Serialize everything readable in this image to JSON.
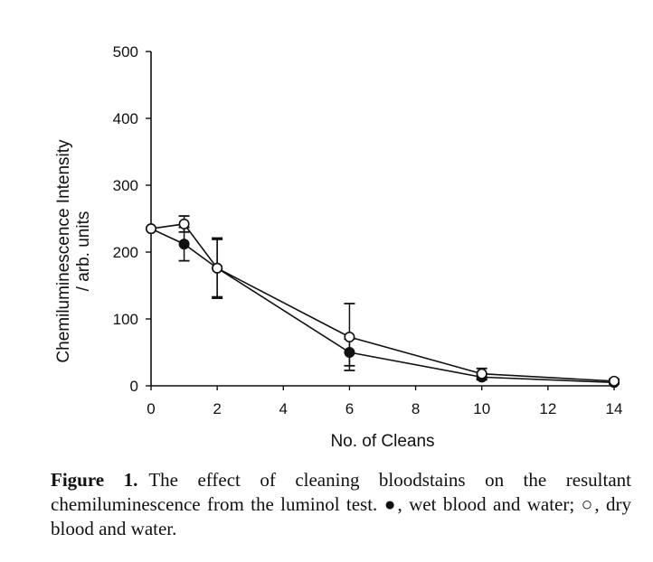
{
  "chart_data": {
    "type": "line",
    "xlabel": "No. of Cleans",
    "ylabel_line1": "Chemiluminescence Intensity",
    "ylabel_line2": "/ arb. units",
    "xlim": [
      0,
      14
    ],
    "ylim": [
      0,
      500
    ],
    "xticks": [
      0,
      2,
      4,
      6,
      8,
      10,
      12,
      14
    ],
    "yticks": [
      0,
      100,
      200,
      300,
      400,
      500
    ],
    "grid": false,
    "series": [
      {
        "name": "wet blood and water",
        "marker": "filled-circle",
        "x": [
          0,
          1,
          2,
          6,
          10,
          14
        ],
        "y": [
          235,
          212,
          176,
          50,
          13,
          5
        ],
        "error": [
          0,
          25,
          43,
          20,
          4,
          2
        ]
      },
      {
        "name": "dry blood and water",
        "marker": "open-circle",
        "x": [
          0,
          1,
          2,
          6,
          10,
          14
        ],
        "y": [
          235,
          242,
          176,
          73,
          18,
          7
        ],
        "error": [
          0,
          12,
          45,
          50,
          8,
          3
        ]
      }
    ]
  },
  "caption": {
    "label": "Figure 1.",
    "text_before_wet": "The effect of cleaning bloodstains on the resultant chemiluminescence from the luminol test.",
    "wet_symbol": "●",
    "text_wet": ", wet blood and water;",
    "dry_symbol": "○",
    "text_dry": ", dry blood and water."
  }
}
